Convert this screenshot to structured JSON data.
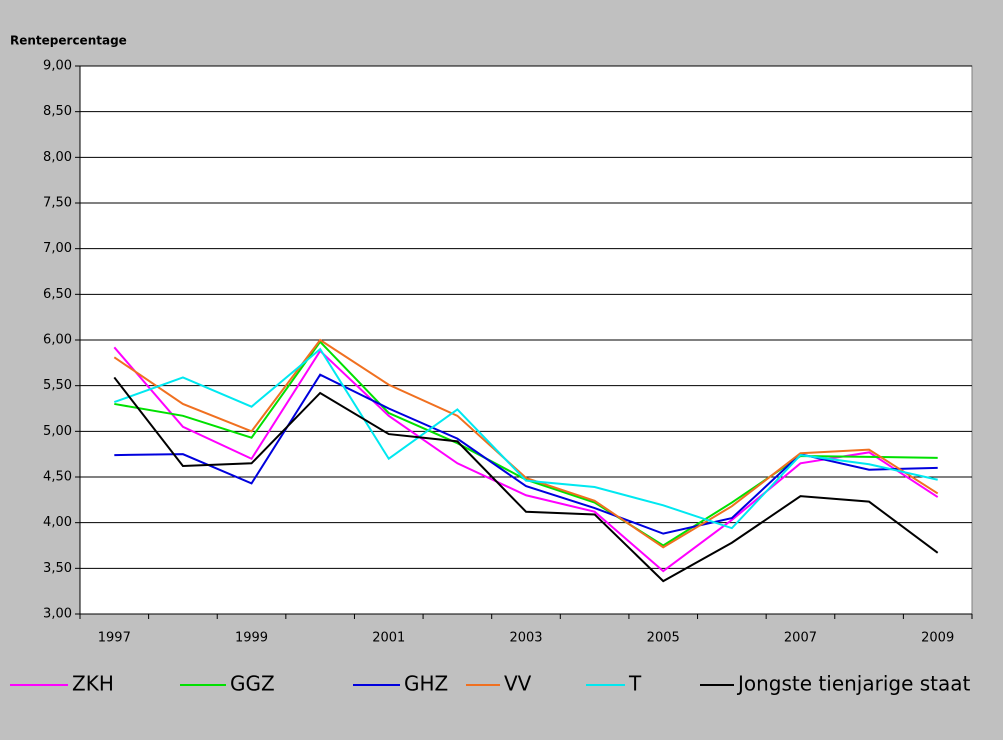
{
  "chart_data": {
    "type": "line",
    "ylabel": "Rentepercentage",
    "categories": [
      "1997",
      null,
      "1999",
      null,
      "2001",
      null,
      "2003",
      null,
      "2005",
      null,
      "2007",
      null,
      "2009"
    ],
    "ylim": [
      3,
      9
    ],
    "yticks": [
      {
        "value": 3,
        "label": "3,00"
      },
      {
        "value": 3.5,
        "label": "3,50"
      },
      {
        "value": 4,
        "label": "4,00"
      },
      {
        "value": 4.5,
        "label": "4,50"
      },
      {
        "value": 5,
        "label": "5,00"
      },
      {
        "value": 5.5,
        "label": "5,50"
      },
      {
        "value": 6,
        "label": "6,00"
      },
      {
        "value": 6.5,
        "label": "6,50"
      },
      {
        "value": 7,
        "label": "7,00"
      },
      {
        "value": 7.5,
        "label": "7,50"
      },
      {
        "value": 8,
        "label": "8,00"
      },
      {
        "value": 8.5,
        "label": "8,50"
      },
      {
        "value": 9,
        "label": "9,00"
      }
    ],
    "grid": true,
    "legend": "bottom",
    "series": [
      {
        "name": "ZKH",
        "color": "#ff00ff",
        "values": [
          5.92,
          5.05,
          4.7,
          5.88,
          5.17,
          4.65,
          4.3,
          4.12,
          3.47,
          4.03,
          4.65,
          4.77,
          4.28
        ]
      },
      {
        "name": "GGZ",
        "color": "#00e000",
        "values": [
          5.3,
          5.17,
          4.93,
          5.98,
          5.2,
          4.87,
          4.47,
          4.22,
          3.75,
          4.22,
          4.73,
          4.72,
          4.71
        ]
      },
      {
        "name": "GHZ",
        "color": "#0000dd",
        "values": [
          4.74,
          4.75,
          4.43,
          5.62,
          5.25,
          4.92,
          4.4,
          4.16,
          3.88,
          4.05,
          4.75,
          4.58,
          4.6
        ]
      },
      {
        "name": "VV",
        "color": "#f07020",
        "values": [
          5.81,
          5.3,
          5.0,
          6.0,
          5.51,
          5.17,
          4.49,
          4.24,
          3.73,
          4.18,
          4.76,
          4.8,
          4.32
        ]
      },
      {
        "name": "T",
        "color": "#00e8f0",
        "values": [
          5.32,
          5.59,
          5.27,
          5.9,
          4.7,
          5.24,
          4.46,
          4.39,
          4.19,
          3.94,
          4.74,
          4.64,
          4.47
        ]
      },
      {
        "name": "Jongste tienjarige staat",
        "color": "#000000",
        "values": [
          5.59,
          4.62,
          4.65,
          5.42,
          4.97,
          4.89,
          4.12,
          4.09,
          3.36,
          3.78,
          4.29,
          4.23,
          3.67
        ]
      }
    ]
  }
}
